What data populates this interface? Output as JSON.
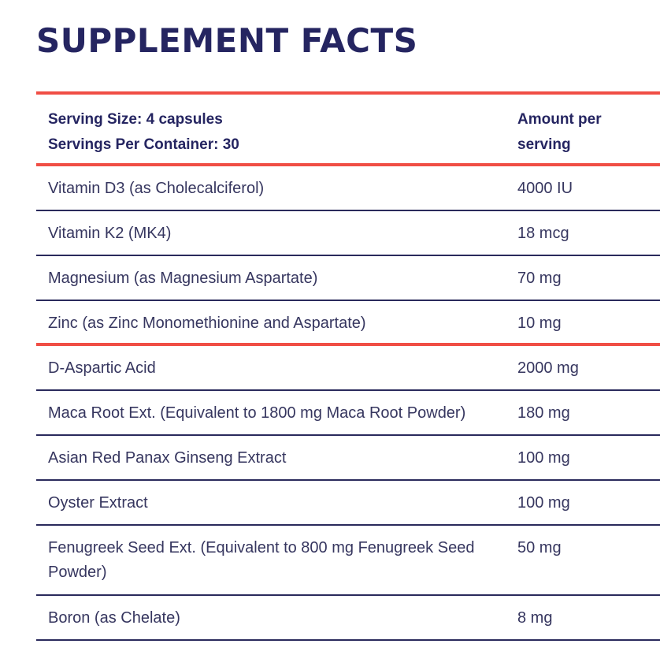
{
  "title": "SUPPLEMENT FACTS",
  "header": {
    "serving_size": "Serving Size: 4 capsules",
    "servings_per_container": "Servings Per Container: 30",
    "amount_line1": "Amount per",
    "amount_line2": "serving"
  },
  "rows": [
    {
      "name": "Vitamin D3 (as Cholecalciferol)",
      "amount": "4000 IU"
    },
    {
      "name": "Vitamin K2 (MK4)",
      "amount": "18 mcg"
    },
    {
      "name": "Magnesium (as Magnesium Aspartate)",
      "amount": "70 mg"
    },
    {
      "name": "Zinc (as Zinc Monomethionine and Aspartate)",
      "amount": "10 mg"
    },
    {
      "name": "D-Aspartic Acid",
      "amount": "2000 mg"
    },
    {
      "name": "Maca Root Ext. (Equivalent to 1800 mg Maca Root Powder)",
      "amount": "180 mg"
    },
    {
      "name": "Asian Red Panax Ginseng Extract",
      "amount": "100 mg"
    },
    {
      "name": "Oyster Extract",
      "amount": "100 mg"
    },
    {
      "name": "Fenugreek Seed Ext. (Equivalent to 800 mg Fenugreek Seed Powder)",
      "amount": "50 mg"
    },
    {
      "name": "Boron (as Chelate)",
      "amount": "8 mg"
    }
  ],
  "colors": {
    "accent": "#f04e45",
    "text": "#252561",
    "rule": "#2a2a5c"
  }
}
